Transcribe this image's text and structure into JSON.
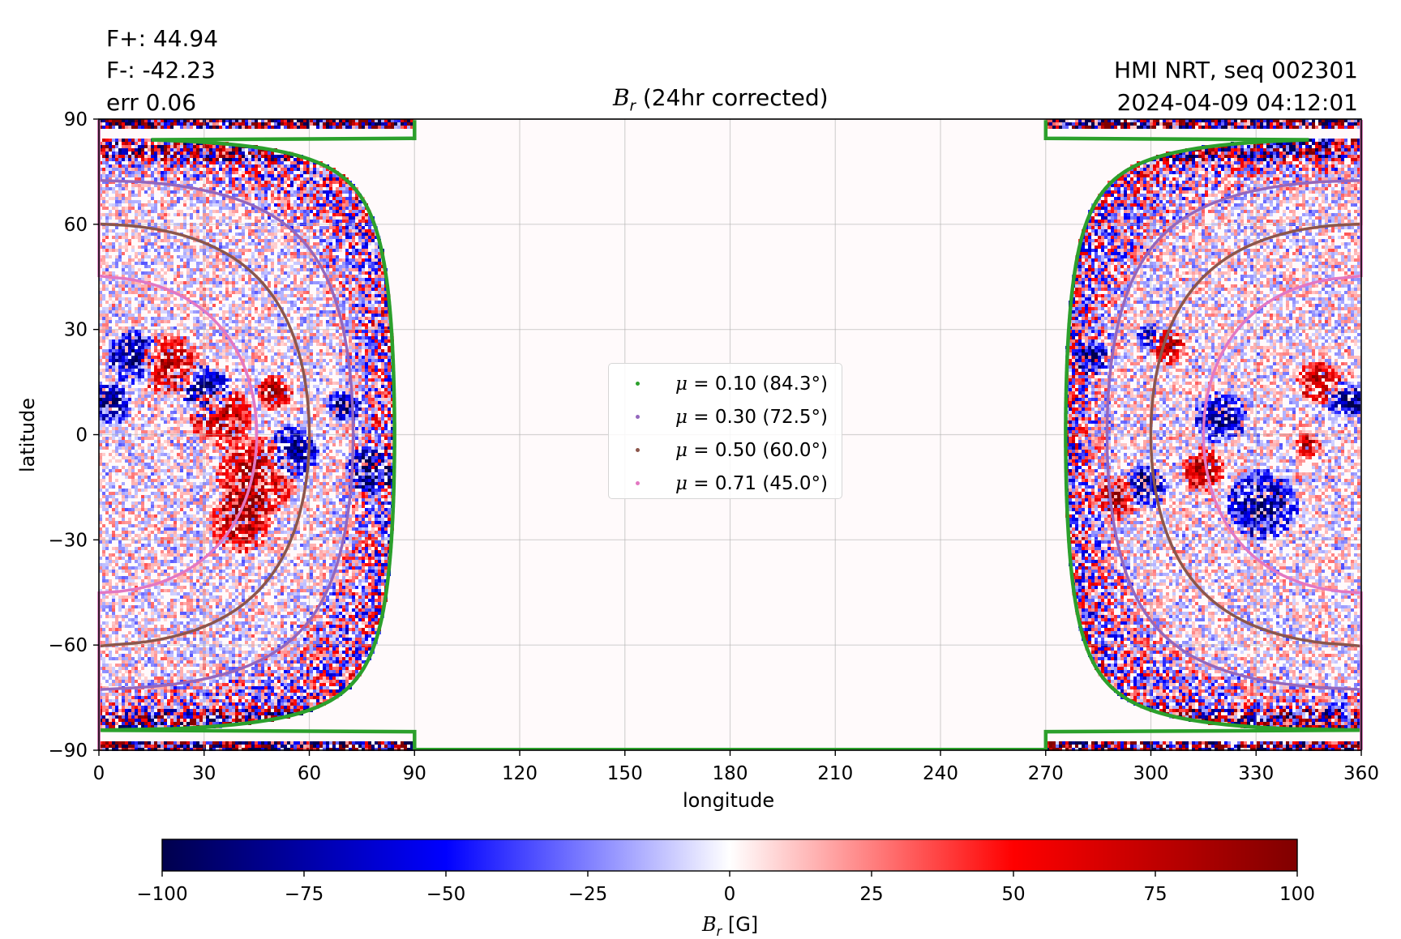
{
  "header": {
    "flux_pos": "F+: 44.94",
    "flux_neg": "F-: -42.23",
    "error": "err 0.06",
    "source": "HMI NRT, seq 002301",
    "timestamp": "2024-04-09 04:12:01",
    "title_symbol": "B",
    "title_subscript": "r",
    "title_suffix": " (24hr corrected)"
  },
  "chart_data": {
    "type": "heatmap",
    "title": "B_r (24hr corrected)",
    "xlabel": "longitude",
    "ylabel": "latitude",
    "xlim": [
      0,
      360
    ],
    "ylim": [
      -90,
      90
    ],
    "xticks": [
      "0",
      "30",
      "60",
      "90",
      "120",
      "150",
      "180",
      "210",
      "240",
      "270",
      "300",
      "330",
      "360"
    ],
    "yticks": [
      "90",
      "60",
      "30",
      "0",
      "−30",
      "−60",
      "−90"
    ],
    "grid": true,
    "observed_longitude_ranges": [
      [
        0,
        90
      ],
      [
        270,
        360
      ]
    ],
    "colorbar": {
      "label_symbol": "B",
      "label_subscript": "r",
      "label_unit": " [G]",
      "range": [
        -100,
        100
      ],
      "ticks": [
        "−100",
        "−75",
        "−50",
        "−25",
        "0",
        "25",
        "50",
        "75",
        "100"
      ],
      "colormap": "seismic",
      "colors": [
        "#00004d",
        "#0000ff",
        "#ffffff",
        "#ff0000",
        "#800000"
      ]
    },
    "series": [
      {
        "name": "μ = 0.10 (84.3°)",
        "mu_label": "μ",
        "rest": " = 0.10 (84.3°)",
        "angle_deg": 84.3,
        "color": "#2ca02c"
      },
      {
        "name": "μ = 0.30 (72.5°)",
        "mu_label": "μ",
        "rest": " = 0.30 (72.5°)",
        "angle_deg": 72.5,
        "color": "#9467bd"
      },
      {
        "name": "μ = 0.50 (60.0°)",
        "mu_label": "μ",
        "rest": " = 0.50 (60.0°)",
        "angle_deg": 60.0,
        "color": "#8c564b"
      },
      {
        "name": "μ = 0.71 (45.0°)",
        "mu_label": "μ",
        "rest": " = 0.71 (45.0°)",
        "angle_deg": 45.0,
        "color": "#e377c2"
      }
    ],
    "legend_position": "center"
  }
}
